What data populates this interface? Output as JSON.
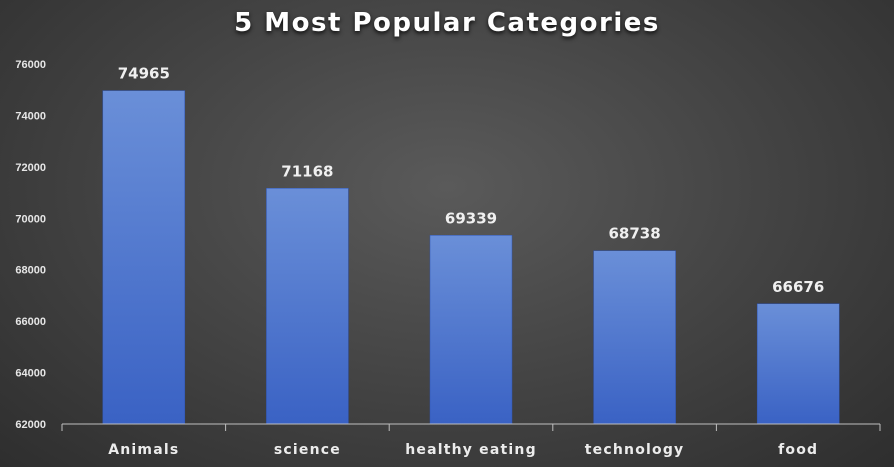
{
  "chart_data": {
    "type": "bar",
    "title": "5 Most Popular Categories",
    "categories": [
      "Animals",
      "science",
      "healthy eating",
      "technology",
      "food"
    ],
    "values": [
      74965,
      71168,
      69339,
      68738,
      66676
    ],
    "data_labels": [
      "74965",
      "71168",
      "69339",
      "68738",
      "66676"
    ],
    "y_ticks": [
      "62000",
      "64000",
      "66000",
      "68000",
      "70000",
      "72000",
      "74000",
      "76000"
    ],
    "ylim": [
      62000,
      76000
    ],
    "xlabel": "",
    "ylabel": "",
    "grid": false,
    "legend": "none",
    "bar_color_top": "#6a8fd8",
    "bar_color_bottom": "#3a62c4",
    "background_color": "#404040",
    "text_color": "#ffffff"
  }
}
